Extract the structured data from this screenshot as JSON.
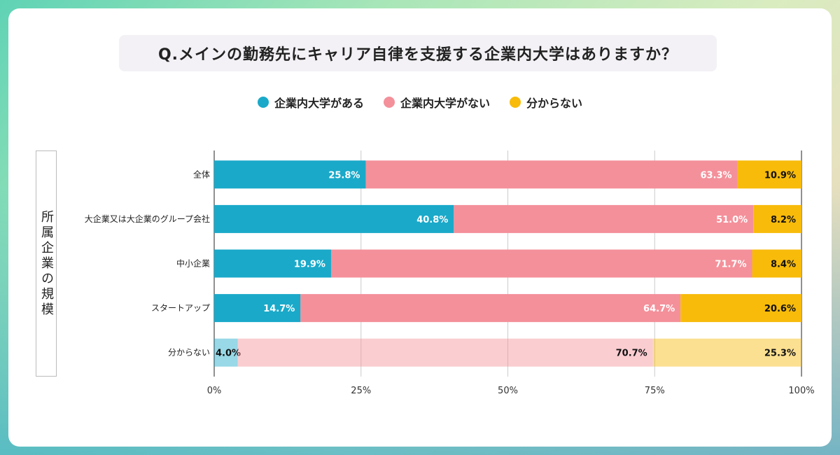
{
  "title": "Q.メインの勤務先にキャリア自律を支援する企業内大学はありますか？",
  "chart_data": {
    "type": "bar",
    "orientation": "horizontal",
    "stacked": true,
    "title": "Q.メインの勤務先にキャリア自律を支援する企業内大学はありますか？",
    "ylabel": "所属企業の規模",
    "xlabel": "",
    "xlim": [
      0,
      100
    ],
    "xticks": [
      "0%",
      "25%",
      "50%",
      "75%",
      "100%"
    ],
    "grid": true,
    "legend_position": "top",
    "categories": [
      "全体",
      "大企業又は大企業のグループ会社",
      "中小企業",
      "スタートアップ",
      "分からない"
    ],
    "series": [
      {
        "name": "企業内大学がある",
        "color": "#1aa9c9",
        "values": [
          25.8,
          40.8,
          19.9,
          14.7,
          4.0
        ]
      },
      {
        "name": "企業内大学がない",
        "color": "#f4909a",
        "values": [
          63.3,
          51.0,
          71.7,
          64.7,
          70.7
        ]
      },
      {
        "name": "分からない",
        "color": "#f8bb0a",
        "values": [
          10.9,
          8.2,
          8.4,
          20.6,
          25.3
        ]
      }
    ]
  }
}
